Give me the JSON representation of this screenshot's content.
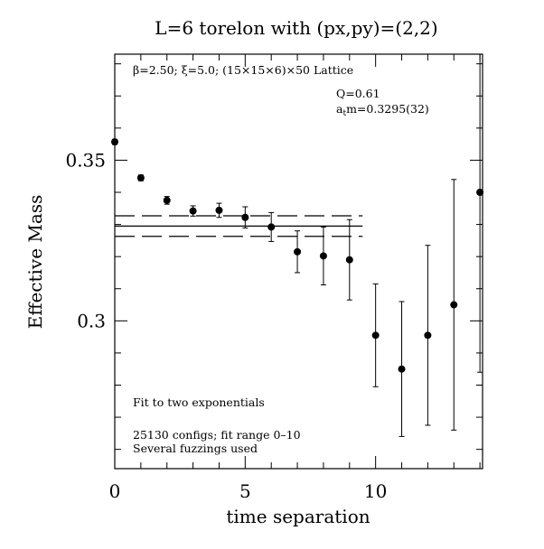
{
  "chart_data": {
    "type": "scatter",
    "title": "L=6 torelon with (px,py)=(2,2)",
    "xlabel": "time separation",
    "ylabel": "Effective Mass",
    "xlim": [
      0,
      14.1
    ],
    "ylim": [
      0.254,
      0.383
    ],
    "x_ticks": [
      0,
      5,
      10
    ],
    "x_tick_labels": [
      "0",
      "5",
      "10"
    ],
    "y_ticks": [
      0.3,
      0.35
    ],
    "y_tick_labels": [
      "0.3",
      "0.35"
    ],
    "lattice_label": "β=2.50; ξ=5.0; (15×15×6)×50 Lattice",
    "q_label": "Q=0.61",
    "mass_label": "atm=0.3295(32)",
    "mass_label_main": "a",
    "mass_label_sub": "t",
    "mass_label_rest": "m=0.3295(32)",
    "notes": [
      "Fit to two exponentials",
      "25130 configs; fit range 0–10",
      "Several fuzzings used"
    ],
    "fit": {
      "value": 0.3295,
      "error": 0.0032,
      "x_range": [
        0,
        9.5
      ]
    },
    "points": [
      {
        "x": 0,
        "y": 0.3557,
        "err": 0.0008
      },
      {
        "x": 1,
        "y": 0.3445,
        "err": 0.0009
      },
      {
        "x": 2,
        "y": 0.3375,
        "err": 0.0012
      },
      {
        "x": 3,
        "y": 0.3342,
        "err": 0.0016
      },
      {
        "x": 4,
        "y": 0.3344,
        "err": 0.0022
      },
      {
        "x": 5,
        "y": 0.3322,
        "err": 0.0033
      },
      {
        "x": 6,
        "y": 0.3292,
        "err": 0.0045
      },
      {
        "x": 7,
        "y": 0.3215,
        "err": 0.0065
      },
      {
        "x": 8,
        "y": 0.3202,
        "err": 0.009
      },
      {
        "x": 9,
        "y": 0.319,
        "err": 0.0125
      },
      {
        "x": 10,
        "y": 0.2955,
        "err": 0.016
      },
      {
        "x": 11,
        "y": 0.285,
        "err": 0.021
      },
      {
        "x": 12,
        "y": 0.2955,
        "err": 0.028
      },
      {
        "x": 13,
        "y": 0.305,
        "err": 0.039
      },
      {
        "x": 14,
        "y": 0.34,
        "err": 0.056
      }
    ]
  }
}
